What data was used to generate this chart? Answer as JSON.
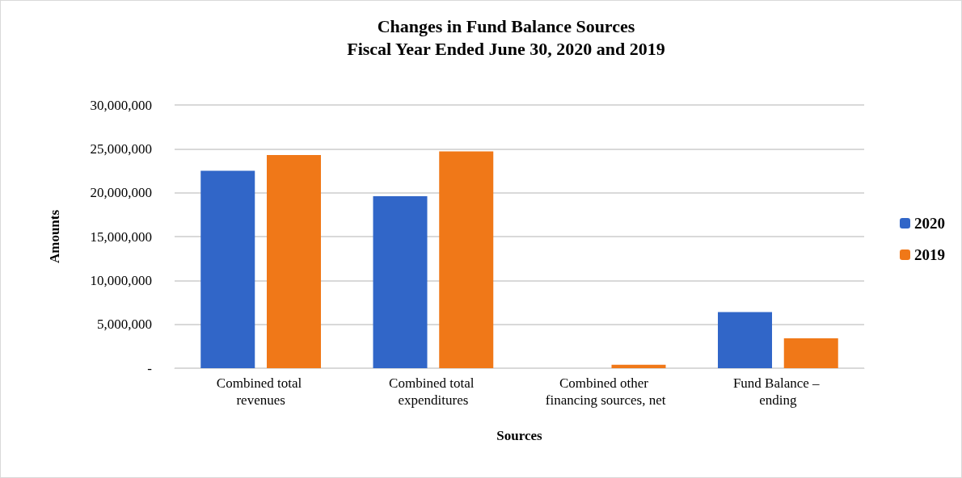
{
  "chart_data": {
    "type": "bar",
    "title": "Changes in Fund Balance Sources\nFiscal Year Ended June 30, 2020 and 2019",
    "xlabel": "Sources",
    "ylabel": "Amounts",
    "categories": [
      "Combined total revenues",
      "Combined total expenditures",
      "Combined other financing sources, net",
      "Fund Balance – ending"
    ],
    "series": [
      {
        "name": "2020",
        "color": "#3166c8",
        "values": [
          22500000,
          19600000,
          0,
          6400000
        ]
      },
      {
        "name": "2019",
        "color": "#f07818",
        "values": [
          24300000,
          24700000,
          400000,
          3400000
        ]
      }
    ],
    "ylim": [
      0,
      30000000
    ],
    "yticks": [
      {
        "value": 0,
        "label": "-"
      },
      {
        "value": 5000000,
        "label": "5,000,000"
      },
      {
        "value": 10000000,
        "label": "10,000,000"
      },
      {
        "value": 15000000,
        "label": "15,000,000"
      },
      {
        "value": 20000000,
        "label": "20,000,000"
      },
      {
        "value": 25000000,
        "label": "25,000,000"
      },
      {
        "value": 30000000,
        "label": "30,000,000"
      }
    ],
    "grid": "y",
    "legend": "right"
  }
}
